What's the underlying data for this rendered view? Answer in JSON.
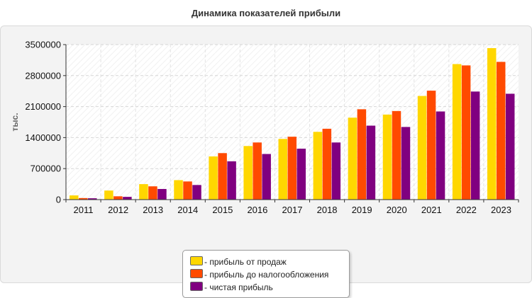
{
  "chart_data": {
    "type": "bar",
    "title": "Динамика показателей прибыли",
    "xlabel": "",
    "ylabel": "тыс.",
    "ylim": [
      0,
      3500000
    ],
    "yticks": [
      0,
      700000,
      1400000,
      2100000,
      2800000,
      3500000
    ],
    "grid": true,
    "legend_position": "bottom",
    "categories": [
      "2011",
      "2012",
      "2013",
      "2014",
      "2015",
      "2016",
      "2017",
      "2018",
      "2019",
      "2020",
      "2021",
      "2022",
      "2023"
    ],
    "series": [
      {
        "name": "- прибыль от продаж",
        "color": "#ffd700",
        "values": [
          95000,
          205000,
          350000,
          440000,
          975000,
          1210000,
          1370000,
          1530000,
          1850000,
          1920000,
          2340000,
          3060000,
          3420000
        ]
      },
      {
        "name": "- прибыль до налогообложения",
        "color": "#ff4a00",
        "values": [
          35000,
          75000,
          300000,
          410000,
          1050000,
          1290000,
          1420000,
          1600000,
          2040000,
          2000000,
          2460000,
          3030000,
          3110000
        ]
      },
      {
        "name": "- чистая прибыль",
        "color": "#800080",
        "values": [
          30000,
          62000,
          240000,
          330000,
          865000,
          1030000,
          1150000,
          1290000,
          1670000,
          1640000,
          1990000,
          2440000,
          2390000
        ]
      }
    ]
  }
}
